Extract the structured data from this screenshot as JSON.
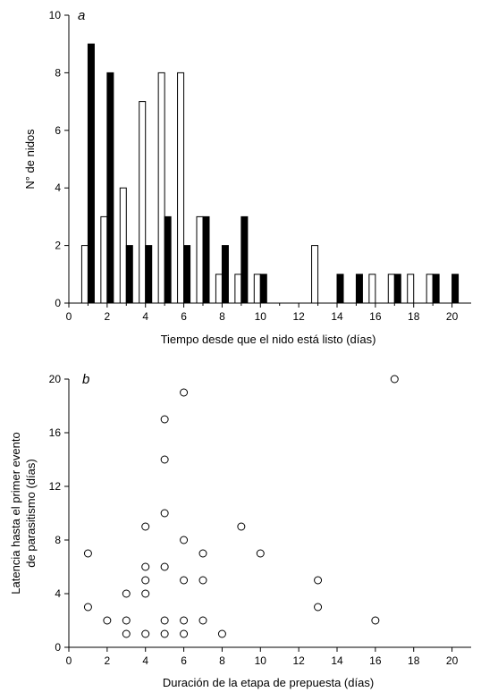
{
  "chart_data": [
    {
      "type": "bar",
      "panel_label": "a",
      "xlabel": "Tiempo desde que el nido está listo (días)",
      "ylabel": "N° de nidos",
      "xlim": [
        0,
        21
      ],
      "ylim": [
        0,
        10
      ],
      "xticks": [
        0,
        2,
        4,
        6,
        8,
        10,
        12,
        14,
        16,
        18,
        20
      ],
      "xticks_minor": [
        1,
        3,
        5,
        7,
        9,
        11,
        13,
        15,
        17,
        19
      ],
      "yticks": [
        0,
        2,
        4,
        6,
        8,
        10
      ],
      "x": [
        1,
        2,
        3,
        4,
        5,
        6,
        7,
        8,
        9,
        10,
        11,
        12,
        13,
        14,
        15,
        16,
        17,
        18,
        19,
        20
      ],
      "series": [
        {
          "style": "open",
          "values": [
            2,
            3,
            4,
            7,
            8,
            8,
            3,
            1,
            1,
            1,
            0,
            0,
            2,
            0,
            0,
            1,
            1,
            1,
            1,
            0
          ]
        },
        {
          "style": "filled",
          "values": [
            9,
            8,
            2,
            2,
            3,
            2,
            3,
            2,
            3,
            1,
            0,
            0,
            0,
            1,
            1,
            0,
            1,
            0,
            1,
            1
          ]
        }
      ]
    },
    {
      "type": "scatter",
      "panel_label": "b",
      "xlabel": "Duración de la etapa de prepuesta (días)",
      "ylabel_lines": [
        "Latencia hasta el primer evento",
        "de parasitismo (días)"
      ],
      "xlim": [
        0,
        21
      ],
      "ylim": [
        0,
        20
      ],
      "xticks": [
        0,
        2,
        4,
        6,
        8,
        10,
        12,
        14,
        16,
        18,
        20
      ],
      "yticks": [
        0,
        4,
        8,
        12,
        16,
        20
      ],
      "points": [
        [
          1,
          7
        ],
        [
          1,
          3
        ],
        [
          2,
          2
        ],
        [
          3,
          4
        ],
        [
          3,
          2
        ],
        [
          3,
          1
        ],
        [
          4,
          9
        ],
        [
          4,
          6
        ],
        [
          4,
          5
        ],
        [
          4,
          4
        ],
        [
          4,
          1
        ],
        [
          5,
          17
        ],
        [
          5,
          14
        ],
        [
          5,
          10
        ],
        [
          5,
          6
        ],
        [
          5,
          2
        ],
        [
          5,
          1
        ],
        [
          6,
          19
        ],
        [
          6,
          8
        ],
        [
          6,
          5
        ],
        [
          6,
          2
        ],
        [
          6,
          1
        ],
        [
          7,
          7
        ],
        [
          7,
          5
        ],
        [
          7,
          2
        ],
        [
          8,
          1
        ],
        [
          9,
          9
        ],
        [
          10,
          7
        ],
        [
          13,
          5
        ],
        [
          13,
          3
        ],
        [
          16,
          2
        ],
        [
          17,
          20
        ]
      ]
    }
  ]
}
